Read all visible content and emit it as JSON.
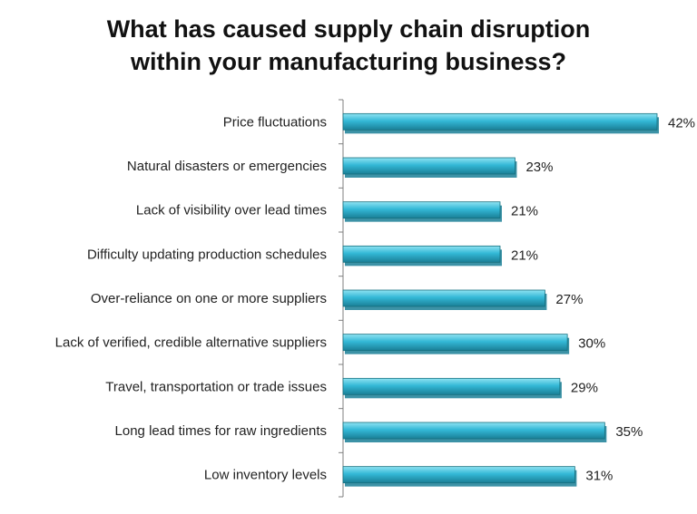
{
  "chart_data": {
    "type": "bar",
    "orientation": "horizontal",
    "title_lines": [
      "What has caused supply chain disruption",
      "within your manufacturing business?"
    ],
    "categories": [
      "Price fluctuations",
      "Natural disasters or emergencies",
      "Lack of visibility over lead times",
      "Difficulty updating production schedules",
      "Over-reliance on one or more suppliers",
      "Lack of verified,  credible alternative suppliers",
      "Travel, transportation or trade issues",
      "Long lead times for raw ingredients",
      "Low inventory levels"
    ],
    "values": [
      42,
      23,
      21,
      21,
      27,
      30,
      29,
      35,
      31
    ],
    "value_labels": [
      "42%",
      "23%",
      "21%",
      "21%",
      "27%",
      "30%",
      "29%",
      "35%",
      "31%"
    ],
    "unit": "%",
    "xlim": [
      0,
      42
    ],
    "grid": false,
    "legend": "none",
    "colors": {
      "bar_fill": "#33b8d6",
      "bar_highlight": "#8fe3f2",
      "bar_shadow": "#1a7f96",
      "bar_outline": "#16707f",
      "axis": "#7f7f7f",
      "text": "#222222"
    }
  }
}
